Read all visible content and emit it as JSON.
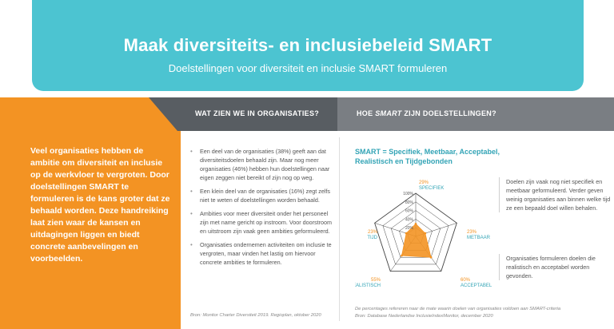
{
  "header": {
    "title": "Maak diversiteits- en inclusiebeleid SMART",
    "subtitle": "Doelstellingen voor diversiteit en inclusie SMART formuleren"
  },
  "intro": "Veel organisaties hebben de ambitie om diversiteit en inclusie op de werkvloer te vergroten. Door doelstellingen SMART te formuleren is de kans groter dat ze behaald worden. Deze handreiking laat zien waar de kansen en uitdagingen liggen en biedt concrete aanbevelingen en voorbeelden.",
  "sections": {
    "organisations": "WAT ZIEN WE IN ORGANISATIES?",
    "smart_pre": "HOE ",
    "smart_em": "SMART",
    "smart_post": " ZIJN DOELSTELLINGEN?"
  },
  "bullets": [
    "Een deel van de organisaties (38%) geeft aan dat diversiteitsdoelen behaald zijn. Maar nog meer organisaties (46%) hebben hun doelstellingen naar eigen zeggen niet bereikt of zijn nog op weg.",
    "Een klein deel van de organisaties (16%) zegt zelfs niet te weten of doelstellingen worden behaald.",
    "Ambities voor meer diversiteit onder het personeel zijn met name gericht op instroom. Voor doorstroom en uitstroom zijn vaak geen ambities geformuleerd.",
    "Organisaties ondernemen activiteiten om inclusie te vergroten, maar vinden het lastig om hiervoor concrete ambities te formuleren."
  ],
  "source_left": "Bron: Monitor Charter Diversiteit 2019. Regioplan, oktober 2020",
  "smart_definition": "SMART = Specifiek, Meetbaar, Acceptabel, Realistisch en Tijdgebonden",
  "chart_data": {
    "type": "radar",
    "categories": [
      "SPECIFIEK",
      "METBAAR",
      "ACCEPTABEL",
      "REALISTISCH",
      "TIJD"
    ],
    "values": [
      29,
      23,
      60,
      55,
      23
    ],
    "value_labels": [
      "29%",
      "23%",
      "60%",
      "55%",
      "23%"
    ],
    "scale_ticks": [
      "100%",
      "80%",
      "60%",
      "40%",
      "20%"
    ],
    "range": [
      0,
      100
    ],
    "colors": {
      "fill": "#f39323",
      "grid": "#444444",
      "label": "#33a4b6",
      "value": "#f39323"
    }
  },
  "callouts": [
    "Doelen zijn vaak nog niet specifiek en meetbaar geformuleerd. Verder geven weinig organisaties aan binnen welke tijd ze een bepaald doel willen behalen.",
    "Organisaties formuleren doelen die realistisch en acceptabel worden gevonden."
  ],
  "footnote_1": "De percentages refereren naar de mate waarin doelen van organisaties voldoen aan SMART-criteria",
  "footnote_2": "Bron: Database Nederlandse InclusieIndexMonitor, december 2020"
}
